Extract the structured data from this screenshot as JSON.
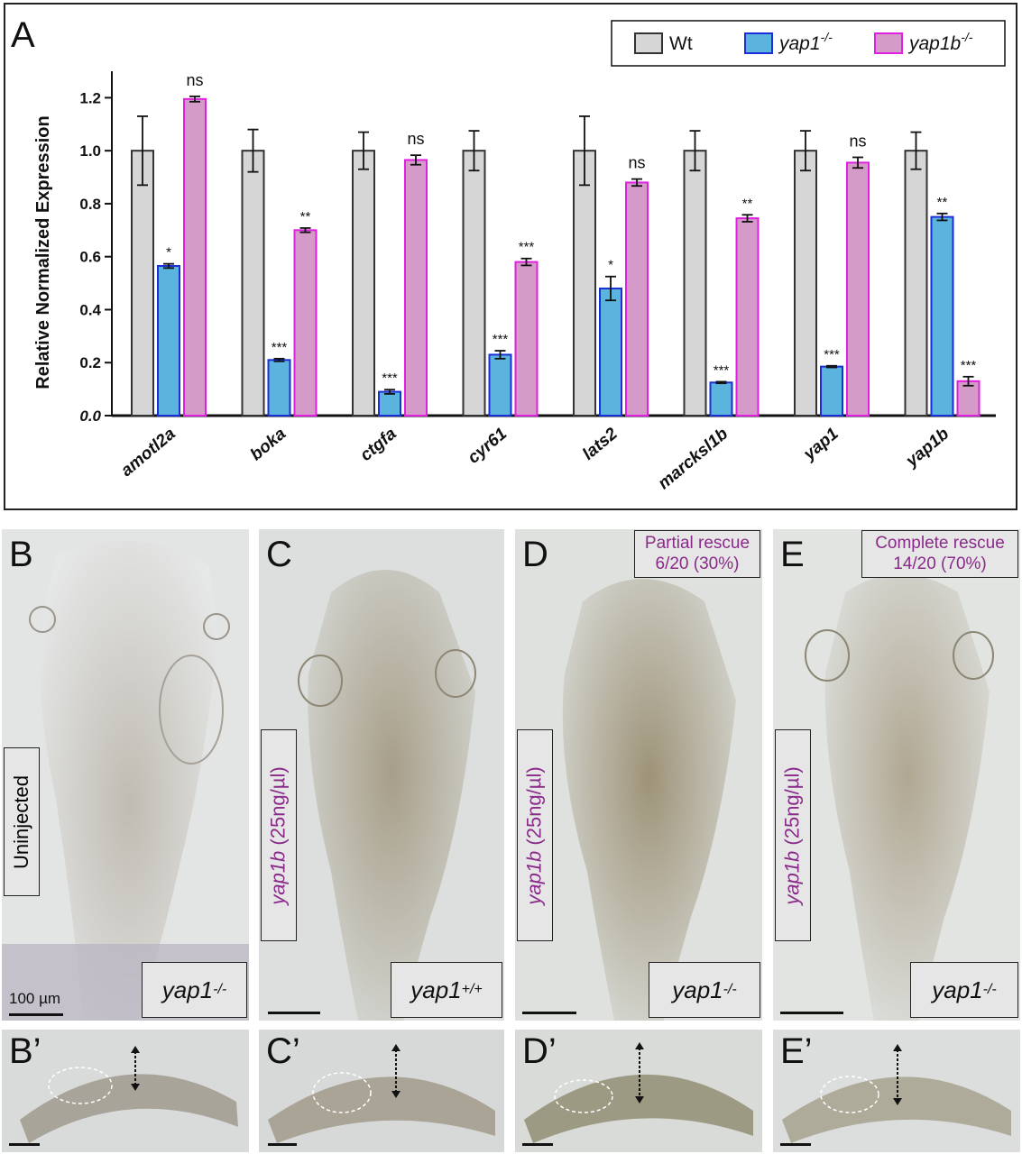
{
  "panel_labels": {
    "a": "A",
    "b": "B",
    "c": "C",
    "d": "D",
    "e": "E",
    "b2": "B’",
    "c2": "C’",
    "d2": "D’",
    "e2": "E’"
  },
  "colors": {
    "wt": "#d6d6d6",
    "yap1": "#5bb4dd",
    "yap1_edge": "#1a2fd6",
    "yap1b": "#d49ac8",
    "yap1b_edge": "#e020e0",
    "label_purple": "#8a2a8a"
  },
  "chart_data": {
    "type": "bar",
    "ylabel": "Relative Normalized Expression",
    "ylim": [
      0,
      1.3
    ],
    "yticks": [
      "0.0",
      "0.2",
      "0.4",
      "0.6",
      "0.8",
      "1.0",
      "1.2"
    ],
    "categories": [
      "amotl2a",
      "boka",
      "ctgfa",
      "cyr61",
      "lats2",
      "marcksl1b",
      "yap1",
      "yap1b"
    ],
    "legend_position": "top-right",
    "series": [
      {
        "name": "Wt",
        "color": "#d6d6d6",
        "values": [
          1.0,
          1.0,
          1.0,
          1.0,
          1.0,
          1.0,
          1.0,
          1.0
        ],
        "errors": [
          0.13,
          0.08,
          0.07,
          0.075,
          0.13,
          0.075,
          0.075,
          0.07
        ],
        "annotations": [
          "",
          "",
          "",
          "",
          "",
          "",
          "",
          ""
        ]
      },
      {
        "name": "yap1",
        "sup": "-/-",
        "color": "#5bb4dd",
        "values": [
          0.565,
          0.21,
          0.09,
          0.23,
          0.48,
          0.125,
          0.185,
          0.75
        ],
        "errors": [
          0.008,
          0.005,
          0.008,
          0.015,
          0.045,
          0.003,
          0.003,
          0.013
        ],
        "annotations": [
          "*",
          "***",
          "***",
          "***",
          "*",
          "***",
          "***",
          "**"
        ]
      },
      {
        "name": "yap1b",
        "sup": "-/-",
        "color": "#d49ac8",
        "values": [
          1.195,
          0.7,
          0.965,
          0.58,
          0.88,
          0.745,
          0.955,
          0.13
        ],
        "errors": [
          0.01,
          0.008,
          0.018,
          0.013,
          0.013,
          0.013,
          0.02,
          0.017
        ],
        "annotations": [
          "ns",
          "**",
          "ns",
          "***",
          "ns",
          "**",
          "ns",
          "***"
        ]
      }
    ]
  },
  "panels": {
    "b": {
      "side_label": "Uninjected",
      "genotype": "yap1",
      "genotype_sup": "-/-",
      "scale_text": "100 µm"
    },
    "c": {
      "side_gene": "yap1b",
      "side_conc": " (25ng/µl)",
      "genotype": "yap1",
      "genotype_sup": "+/+"
    },
    "d": {
      "side_gene": "yap1b",
      "side_conc": " (25ng/µl)",
      "genotype": "yap1",
      "genotype_sup": "-/-",
      "rescue_line1": "Partial rescue",
      "rescue_line2": "6/20 (30%)"
    },
    "e": {
      "side_gene": "yap1b",
      "side_conc": " (25ng/µl)",
      "genotype": "yap1",
      "genotype_sup": "-/-",
      "rescue_line1": "Complete rescue",
      "rescue_line2": "14/20 (70%)"
    }
  }
}
